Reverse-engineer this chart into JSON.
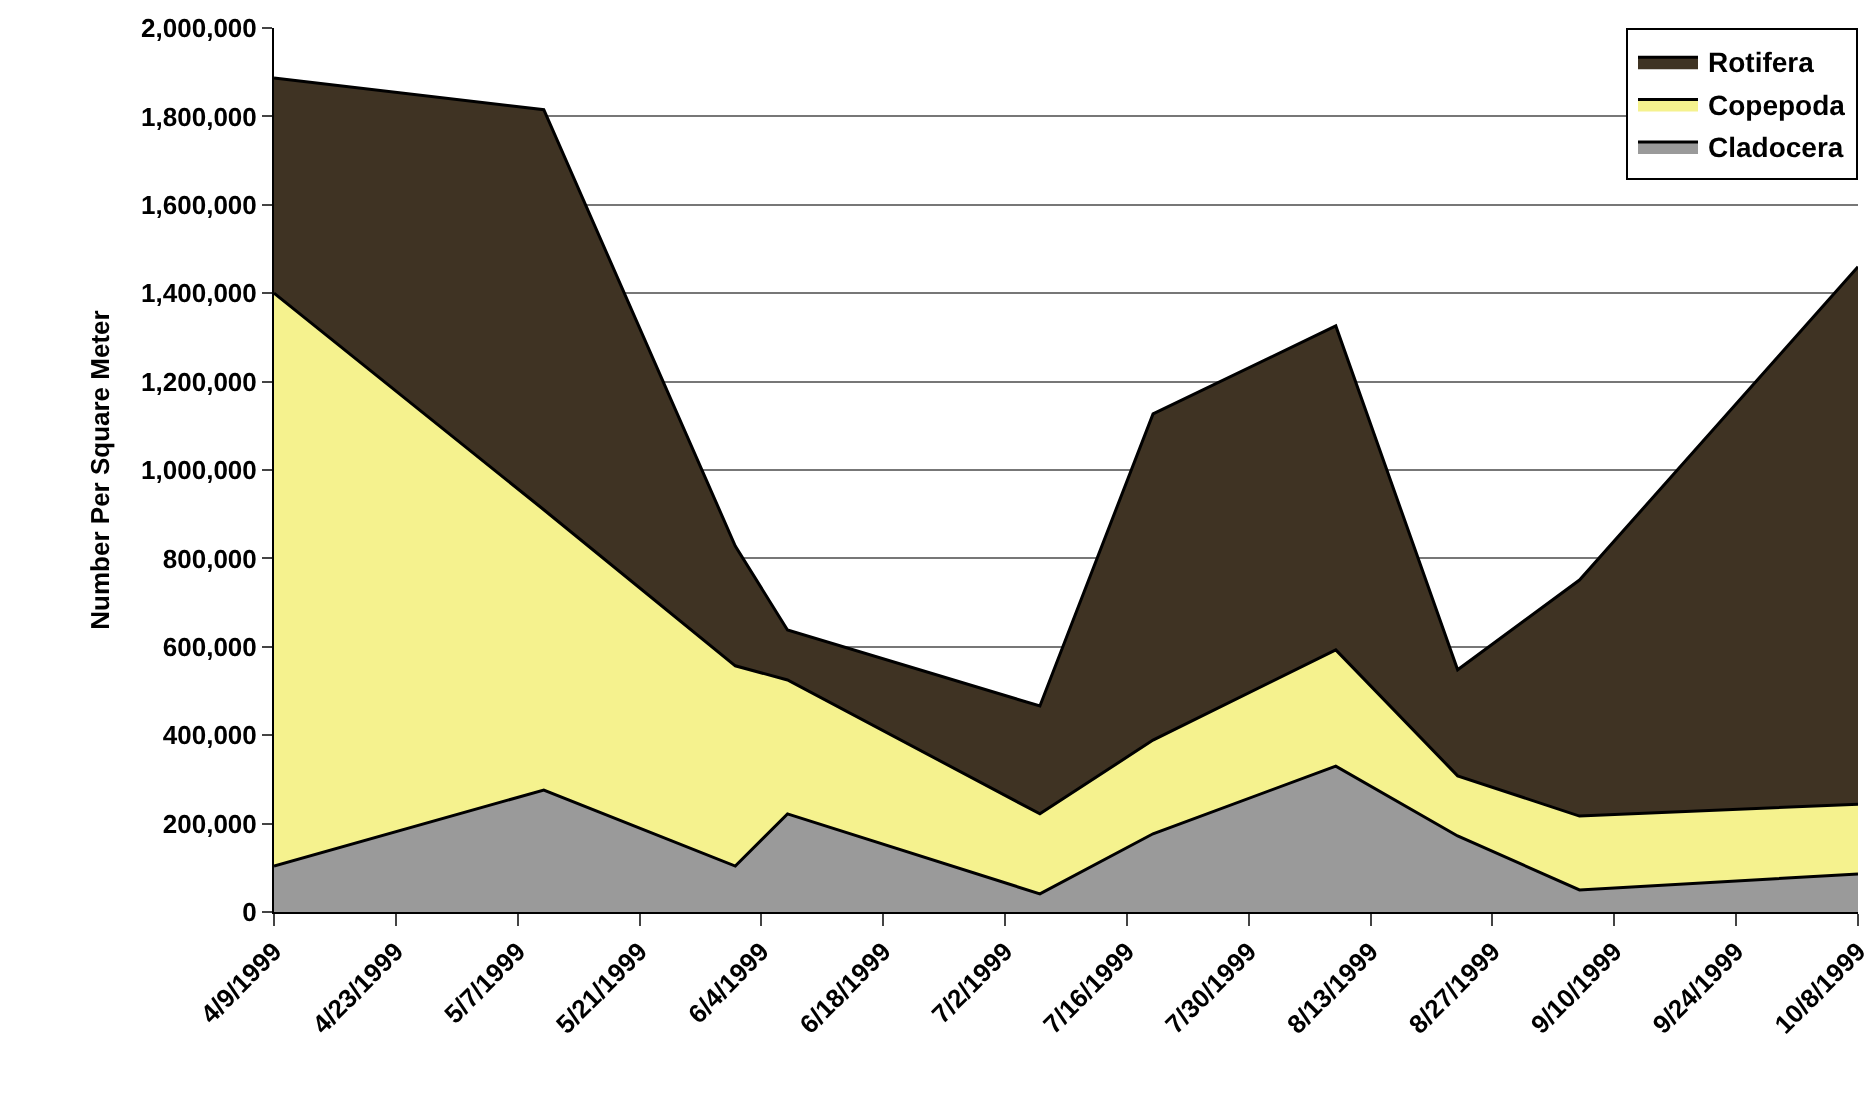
{
  "chart_data": {
    "type": "area",
    "stacked": true,
    "ylabel": "Number Per Square Meter",
    "x": [
      "1999-04-09",
      "1999-05-10",
      "1999-06-01",
      "1999-06-07",
      "1999-07-06",
      "1999-07-19",
      "1999-08-09",
      "1999-08-23",
      "1999-09-06",
      "1999-10-08"
    ],
    "series": [
      {
        "name": "Cladocera",
        "color": "#9a9a9a",
        "values": [
          104000,
          276000,
          104000,
          222000,
          41000,
          177000,
          330000,
          172000,
          50000,
          86000
        ]
      },
      {
        "name": "Copepoda",
        "color": "#f5f28e",
        "values": [
          1296000,
          634000,
          453000,
          303000,
          181000,
          212000,
          263000,
          136000,
          167000,
          158000
        ]
      },
      {
        "name": "Rotifera",
        "color": "#3f3323",
        "values": [
          487000,
          905000,
          271000,
          113000,
          244000,
          738000,
          733000,
          240000,
          534000,
          1216000
        ]
      }
    ],
    "xlim": [
      "1999-04-09",
      "1999-10-08"
    ],
    "xticks": [
      {
        "value": "1999-04-09",
        "label": "4/9/1999"
      },
      {
        "value": "1999-04-23",
        "label": "4/23/1999"
      },
      {
        "value": "1999-05-07",
        "label": "5/7/1999"
      },
      {
        "value": "1999-05-21",
        "label": "5/21/1999"
      },
      {
        "value": "1999-06-04",
        "label": "6/4/1999"
      },
      {
        "value": "1999-06-18",
        "label": "6/18/1999"
      },
      {
        "value": "1999-07-02",
        "label": "7/2/1999"
      },
      {
        "value": "1999-07-16",
        "label": "7/16/1999"
      },
      {
        "value": "1999-07-30",
        "label": "7/30/1999"
      },
      {
        "value": "1999-08-13",
        "label": "8/13/1999"
      },
      {
        "value": "1999-08-27",
        "label": "8/27/1999"
      },
      {
        "value": "1999-09-10",
        "label": "9/10/1999"
      },
      {
        "value": "1999-09-24",
        "label": "9/24/1999"
      },
      {
        "value": "1999-10-08",
        "label": "10/8/1999"
      }
    ],
    "ylim": [
      0,
      2000000
    ],
    "yticks": [
      0,
      {
        "value": 200000,
        "label": "200,000"
      },
      {
        "value": 400000,
        "label": "400,000"
      },
      {
        "value": 600000,
        "label": "600,000"
      },
      {
        "value": 800000,
        "label": "800,000"
      },
      {
        "value": 1000000,
        "label": "1,000,000"
      },
      {
        "value": 1200000,
        "label": "1,200,000"
      },
      {
        "value": 1400000,
        "label": "1,400,000"
      },
      {
        "value": 1600000,
        "label": "1,600,000"
      },
      {
        "value": 1800000,
        "label": "1,800,000"
      },
      {
        "value": 2000000,
        "label": "2,000,000"
      }
    ],
    "grid": "y",
    "legend": "top right",
    "marker": "none"
  }
}
